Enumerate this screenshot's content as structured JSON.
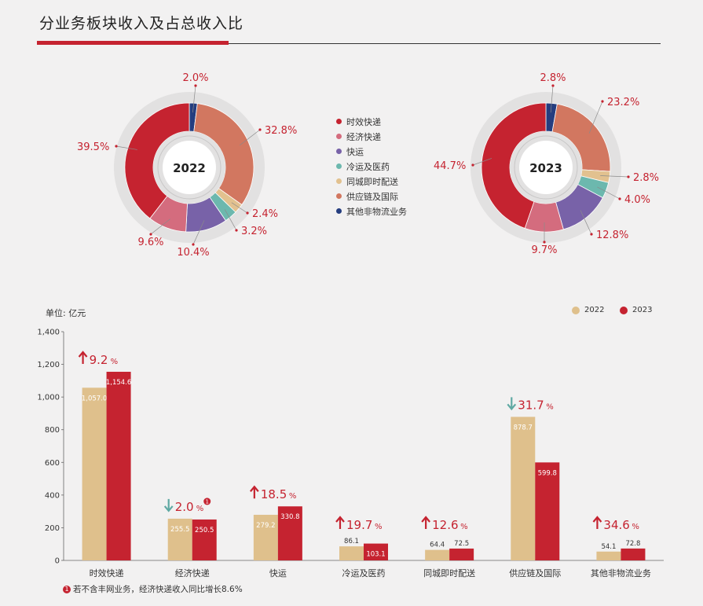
{
  "page": {
    "title": "分业务板块收入及占总收入比"
  },
  "colors": {
    "时效快递": "#c52330",
    "经济快递": "#d46c7e",
    "快运": "#7862a8",
    "冷运及医药": "#6cb8ae",
    "同城即时配送": "#e2c18f",
    "供应链及国际": "#d27760",
    "其他非物流业务": "#253d7f",
    "bar2022": "#dfc08c",
    "bar2023": "#c52330",
    "accent": "#c52330",
    "down": "#5fa9a3"
  },
  "legend": [
    "时效快递",
    "经济快递",
    "快运",
    "冷运及医药",
    "同城即时配送",
    "供应链及国际",
    "其他非物流业务"
  ],
  "chart_data": [
    {
      "type": "pie",
      "title": "2022",
      "slices": [
        {
          "name": "其他非物流业务",
          "value": 2.0,
          "label": "2.0%"
        },
        {
          "name": "供应链及国际",
          "value": 32.8,
          "label": "32.8%"
        },
        {
          "name": "同城即时配送",
          "value": 2.4,
          "label": "2.4%"
        },
        {
          "name": "冷运及医药",
          "value": 3.2,
          "label": "3.2%"
        },
        {
          "name": "快运",
          "value": 10.4,
          "label": "10.4%"
        },
        {
          "name": "经济快递",
          "value": 9.6,
          "label": "9.6%"
        },
        {
          "name": "时效快递",
          "value": 39.5,
          "label": "39.5%"
        }
      ]
    },
    {
      "type": "pie",
      "title": "2023",
      "slices": [
        {
          "name": "其他非物流业务",
          "value": 2.8,
          "label": "2.8%"
        },
        {
          "name": "供应链及国际",
          "value": 23.2,
          "label": "23.2%"
        },
        {
          "name": "同城即时配送",
          "value": 2.8,
          "label": "2.8%"
        },
        {
          "name": "冷运及医药",
          "value": 4.0,
          "label": "4.0%"
        },
        {
          "name": "快运",
          "value": 12.8,
          "label": "12.8%"
        },
        {
          "name": "经济快递",
          "value": 9.7,
          "label": "9.7%"
        },
        {
          "name": "时效快递",
          "value": 44.7,
          "label": "44.7%"
        }
      ]
    },
    {
      "type": "bar",
      "unit": "单位: 亿元",
      "categories": [
        "时效快递",
        "经济快递",
        "快运",
        "冷运及医药",
        "同城即时配送",
        "供应链及国际",
        "其他非物流业务"
      ],
      "series": [
        {
          "name": "2022",
          "values": [
            1057.0,
            255.5,
            279.2,
            86.1,
            64.4,
            878.7,
            54.1
          ],
          "labels": [
            "1,057.0",
            "255.5",
            "279.2",
            "86.1",
            "64.4",
            "878.7",
            "54.1"
          ]
        },
        {
          "name": "2023",
          "values": [
            1154.6,
            250.5,
            330.8,
            103.1,
            72.5,
            599.8,
            72.8
          ],
          "labels": [
            "1,154.6",
            "250.5",
            "330.8",
            "103.1",
            "72.5",
            "599.8",
            "72.8"
          ]
        }
      ],
      "ylim": [
        0,
        1400
      ],
      "yticks": [
        0,
        200,
        400,
        600,
        800,
        1000,
        1200,
        1400
      ],
      "ytick_labels": [
        "0",
        "200",
        "400",
        "600",
        "800",
        "1,000",
        "1,200",
        "1,400"
      ],
      "changes": [
        {
          "direction": "up",
          "value": "9.2",
          "unit": "%"
        },
        {
          "direction": "down",
          "value": "2.0",
          "unit": "%",
          "note_mark": "1"
        },
        {
          "direction": "up",
          "value": "18.5",
          "unit": "%"
        },
        {
          "direction": "up",
          "value": "19.7",
          "unit": "%"
        },
        {
          "direction": "up",
          "value": "12.6",
          "unit": "%"
        },
        {
          "direction": "down",
          "value": "31.7",
          "unit": "%"
        },
        {
          "direction": "up",
          "value": "34.6",
          "unit": "%"
        }
      ]
    }
  ],
  "footnote": {
    "mark": "1",
    "text": "若不含丰网业务，经济快递收入同比增长8.6%"
  }
}
